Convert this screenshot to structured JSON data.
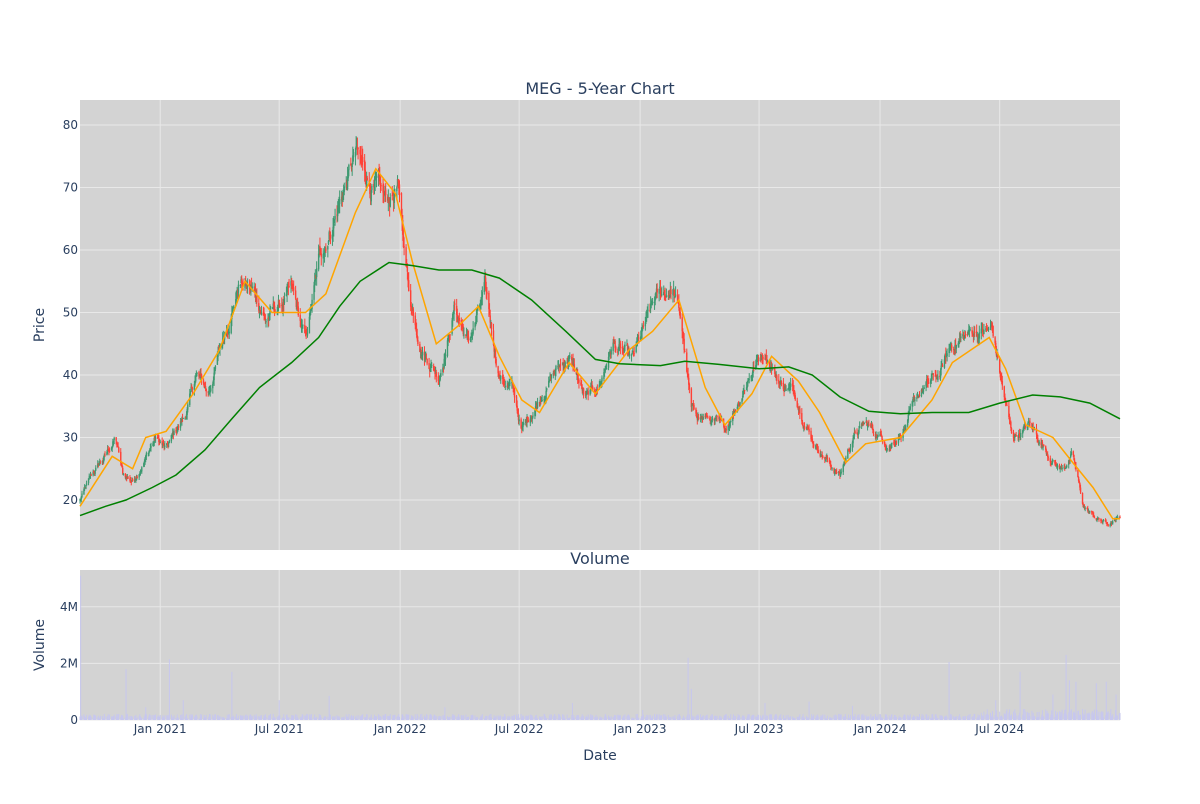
{
  "chart_data": [
    {
      "type": "candlestick",
      "title": "MEG - 5-Year Chart",
      "ylabel": "Price",
      "ylim": [
        12,
        84
      ],
      "yticks": [
        20,
        30,
        40,
        50,
        60,
        70,
        80
      ],
      "x_range": [
        "2020-09-01",
        "2024-12-31"
      ],
      "candlestick_anchors": [
        [
          "2020-09-01",
          20
        ],
        [
          "2020-09-20",
          24
        ],
        [
          "2020-10-10",
          27
        ],
        [
          "2020-10-25",
          30
        ],
        [
          "2020-11-05",
          24
        ],
        [
          "2020-11-20",
          23
        ],
        [
          "2020-12-10",
          27
        ],
        [
          "2020-12-25",
          30
        ],
        [
          "2021-01-10",
          28
        ],
        [
          "2021-01-25",
          31
        ],
        [
          "2021-02-10",
          34
        ],
        [
          "2021-02-25",
          40
        ],
        [
          "2021-03-15",
          37
        ],
        [
          "2021-04-10",
          47
        ],
        [
          "2021-05-01",
          55
        ],
        [
          "2021-05-25",
          53
        ],
        [
          "2021-06-10",
          49
        ],
        [
          "2021-07-01",
          51
        ],
        [
          "2021-07-20",
          53
        ],
        [
          "2021-08-10",
          45
        ],
        [
          "2021-09-01",
          59
        ],
        [
          "2021-09-25",
          66
        ],
        [
          "2021-10-25",
          75
        ],
        [
          "2021-11-15",
          71
        ],
        [
          "2021-12-10",
          67
        ],
        [
          "2021-12-28",
          70
        ],
        [
          "2022-01-15",
          53
        ],
        [
          "2022-02-05",
          44
        ],
        [
          "2022-03-01",
          40
        ],
        [
          "2022-03-25",
          51
        ],
        [
          "2022-04-15",
          45
        ],
        [
          "2022-05-10",
          53
        ],
        [
          "2022-06-01",
          40
        ],
        [
          "2022-06-20",
          38
        ],
        [
          "2022-07-05",
          31
        ],
        [
          "2022-07-25",
          35
        ],
        [
          "2022-08-20",
          40
        ],
        [
          "2022-09-15",
          43
        ],
        [
          "2022-10-10",
          36
        ],
        [
          "2022-10-30",
          38
        ],
        [
          "2022-11-20",
          45
        ],
        [
          "2022-12-20",
          42
        ],
        [
          "2023-01-10",
          48
        ],
        [
          "2023-01-25",
          52
        ],
        [
          "2023-02-20",
          54
        ],
        [
          "2023-03-05",
          48
        ],
        [
          "2023-03-20",
          34
        ],
        [
          "2023-04-15",
          33
        ],
        [
          "2023-05-10",
          31
        ],
        [
          "2023-05-30",
          36
        ],
        [
          "2023-06-20",
          41
        ],
        [
          "2023-07-10",
          44
        ],
        [
          "2023-08-01",
          39
        ],
        [
          "2023-08-25",
          37
        ],
        [
          "2023-09-20",
          30
        ],
        [
          "2023-10-15",
          26
        ],
        [
          "2023-11-01",
          24
        ],
        [
          "2023-11-20",
          30
        ],
        [
          "2023-12-10",
          32
        ],
        [
          "2024-01-15",
          29
        ],
        [
          "2024-02-10",
          32
        ],
        [
          "2024-03-01",
          37
        ],
        [
          "2024-04-01",
          40
        ],
        [
          "2024-04-20",
          45
        ],
        [
          "2024-05-25",
          47
        ],
        [
          "2024-06-20",
          47
        ],
        [
          "2024-07-05",
          38
        ],
        [
          "2024-07-20",
          30
        ],
        [
          "2024-08-15",
          32
        ],
        [
          "2024-09-10",
          28
        ],
        [
          "2024-10-01",
          25
        ],
        [
          "2024-10-20",
          27
        ],
        [
          "2024-11-05",
          19
        ],
        [
          "2024-11-25",
          17
        ],
        [
          "2024-12-15",
          16
        ],
        [
          "2024-12-31",
          17
        ]
      ],
      "ma_short": [
        [
          "2020-09-01",
          19
        ],
        [
          "2020-10-20",
          27
        ],
        [
          "2020-11-20",
          25
        ],
        [
          "2020-12-10",
          30
        ],
        [
          "2021-01-10",
          31
        ],
        [
          "2021-02-20",
          37
        ],
        [
          "2021-04-01",
          44
        ],
        [
          "2021-05-10",
          55
        ],
        [
          "2021-06-20",
          50
        ],
        [
          "2021-08-10",
          50
        ],
        [
          "2021-09-10",
          53
        ],
        [
          "2021-10-25",
          66
        ],
        [
          "2021-11-25",
          73
        ],
        [
          "2021-12-25",
          69
        ],
        [
          "2022-01-20",
          58
        ],
        [
          "2022-02-25",
          45
        ],
        [
          "2022-04-01",
          48
        ],
        [
          "2022-04-30",
          51
        ],
        [
          "2022-06-01",
          43
        ],
        [
          "2022-07-05",
          36
        ],
        [
          "2022-08-01",
          34
        ],
        [
          "2022-09-15",
          42
        ],
        [
          "2022-10-25",
          37
        ],
        [
          "2022-12-15",
          44
        ],
        [
          "2023-01-20",
          47
        ],
        [
          "2023-03-01",
          52
        ],
        [
          "2023-04-10",
          38
        ],
        [
          "2023-05-10",
          32
        ],
        [
          "2023-06-20",
          37
        ],
        [
          "2023-07-20",
          43
        ],
        [
          "2023-08-30",
          39
        ],
        [
          "2023-10-01",
          34
        ],
        [
          "2023-11-10",
          26
        ],
        [
          "2023-12-10",
          29
        ],
        [
          "2024-02-01",
          30
        ],
        [
          "2024-03-20",
          36
        ],
        [
          "2024-04-20",
          42
        ],
        [
          "2024-06-15",
          46
        ],
        [
          "2024-07-10",
          41
        ],
        [
          "2024-08-10",
          32
        ],
        [
          "2024-09-20",
          30
        ],
        [
          "2024-10-20",
          26
        ],
        [
          "2024-11-20",
          22
        ],
        [
          "2024-12-20",
          17
        ],
        [
          "2024-12-31",
          17
        ]
      ],
      "ma_long": [
        [
          "2020-09-01",
          17.5
        ],
        [
          "2020-10-10",
          19
        ],
        [
          "2020-11-10",
          20
        ],
        [
          "2020-12-20",
          22
        ],
        [
          "2021-01-25",
          24
        ],
        [
          "2021-03-10",
          28
        ],
        [
          "2021-04-20",
          33
        ],
        [
          "2021-06-01",
          38
        ],
        [
          "2021-07-20",
          42
        ],
        [
          "2021-08-30",
          46
        ],
        [
          "2021-10-01",
          51
        ],
        [
          "2021-11-01",
          55
        ],
        [
          "2021-12-15",
          58
        ],
        [
          "2022-01-20",
          57.5
        ],
        [
          "2022-03-01",
          56.8
        ],
        [
          "2022-04-20",
          56.8
        ],
        [
          "2022-06-01",
          55.5
        ],
        [
          "2022-07-20",
          52
        ],
        [
          "2022-09-10",
          47
        ],
        [
          "2022-10-25",
          42.5
        ],
        [
          "2022-12-01",
          41.8
        ],
        [
          "2023-02-01",
          41.5
        ],
        [
          "2023-03-10",
          42.2
        ],
        [
          "2023-05-01",
          41.7
        ],
        [
          "2023-07-01",
          41
        ],
        [
          "2023-08-15",
          41.3
        ],
        [
          "2023-09-20",
          40
        ],
        [
          "2023-11-01",
          36.5
        ],
        [
          "2023-12-15",
          34.2
        ],
        [
          "2024-02-01",
          33.8
        ],
        [
          "2024-03-20",
          34
        ],
        [
          "2024-05-15",
          34
        ],
        [
          "2024-07-01",
          35.5
        ],
        [
          "2024-08-20",
          36.8
        ],
        [
          "2024-10-01",
          36.5
        ],
        [
          "2024-11-15",
          35.5
        ],
        [
          "2024-12-31",
          33
        ]
      ],
      "colors": {
        "increasing": "#3d9970",
        "decreasing": "#ff4136",
        "ma_short": "#ffa500",
        "ma_long": "#008000",
        "plot_bg": "#d3d3d3",
        "grid": "#e8e8e8"
      }
    },
    {
      "type": "bar",
      "title": "Volume",
      "ylabel": "Volume",
      "xlabel": "Date",
      "ylim": [
        0,
        5300000
      ],
      "yticks": [
        0,
        2000000,
        4000000
      ],
      "ytick_labels": [
        "0",
        "2M",
        "4M"
      ],
      "baseline": 120000,
      "spikes": [
        [
          "2020-09-02",
          5100000
        ],
        [
          "2020-11-10",
          1800000
        ],
        [
          "2020-12-10",
          450000
        ],
        [
          "2021-01-15",
          2150000
        ],
        [
          "2021-02-05",
          700000
        ],
        [
          "2021-04-20",
          1700000
        ],
        [
          "2021-07-01",
          700000
        ],
        [
          "2021-09-15",
          850000
        ],
        [
          "2021-09-25",
          1750000
        ],
        [
          "2021-11-20",
          400000
        ],
        [
          "2022-03-10",
          450000
        ],
        [
          "2022-09-20",
          600000
        ],
        [
          "2023-01-05",
          350000
        ],
        [
          "2023-03-15",
          2200000
        ],
        [
          "2023-03-20",
          1100000
        ],
        [
          "2023-07-10",
          600000
        ],
        [
          "2023-09-15",
          650000
        ],
        [
          "2023-11-20",
          500000
        ],
        [
          "2024-04-15",
          2050000
        ],
        [
          "2024-05-05",
          750000
        ],
        [
          "2024-06-25",
          700000
        ],
        [
          "2024-08-01",
          1700000
        ],
        [
          "2024-09-20",
          900000
        ],
        [
          "2024-10-10",
          2300000
        ],
        [
          "2024-10-15",
          1400000
        ],
        [
          "2024-10-25",
          1350000
        ],
        [
          "2024-11-25",
          1300000
        ],
        [
          "2024-12-10",
          1350000
        ],
        [
          "2024-12-25",
          900000
        ]
      ],
      "colors": {
        "bar": "#c7c7ee",
        "plot_bg": "#d3d3d3",
        "grid": "#e8e8e8"
      }
    }
  ],
  "xticks": [
    [
      "2021-01-01",
      "Jan 2021"
    ],
    [
      "2021-07-01",
      "Jul 2021"
    ],
    [
      "2022-01-01",
      "Jan 2022"
    ],
    [
      "2022-07-01",
      "Jul 2022"
    ],
    [
      "2023-01-01",
      "Jan 2023"
    ],
    [
      "2023-07-01",
      "Jul 2023"
    ],
    [
      "2024-01-01",
      "Jan 2024"
    ],
    [
      "2024-07-01",
      "Jul 2024"
    ]
  ]
}
